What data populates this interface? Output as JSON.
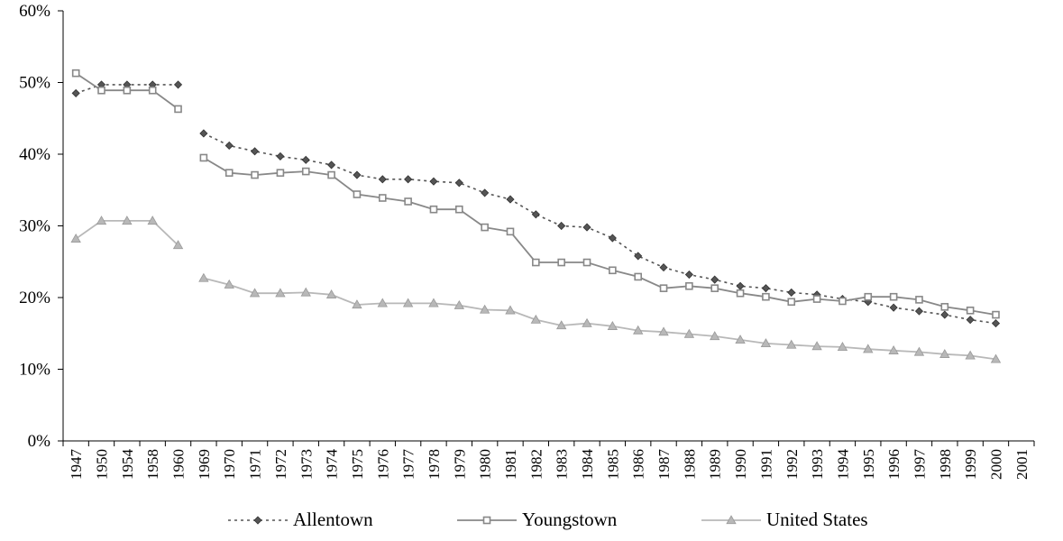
{
  "chart_data": {
    "type": "line",
    "x": [
      "1947",
      "1950",
      "1954",
      "1958",
      "1960",
      "1969",
      "1970",
      "1971",
      "1972",
      "1973",
      "1974",
      "1975",
      "1976",
      "1977",
      "1978",
      "1979",
      "1980",
      "1981",
      "1982",
      "1983",
      "1984",
      "1985",
      "1986",
      "1987",
      "1988",
      "1989",
      "1990",
      "1991",
      "1992",
      "1993",
      "1994",
      "1995",
      "1996",
      "1997",
      "1998",
      "1999",
      "2000",
      "2001"
    ],
    "series": [
      {
        "name": "Allentown",
        "color": "#555555",
        "marker": "diamond",
        "dash": "dotted",
        "values": [
          48.5,
          49.7,
          49.7,
          49.7,
          49.7,
          42.9,
          41.2,
          40.4,
          39.7,
          39.2,
          38.5,
          37.1,
          36.5,
          36.5,
          36.2,
          36.0,
          34.6,
          33.7,
          31.6,
          30.0,
          29.8,
          28.3,
          25.8,
          24.2,
          23.2,
          22.5,
          21.6,
          21.3,
          20.7,
          20.4,
          19.8,
          19.4,
          18.6,
          18.1,
          17.6,
          16.9,
          16.4,
          null
        ]
      },
      {
        "name": "Youngstown",
        "color": "#888888",
        "marker": "square",
        "dash": "solid",
        "values": [
          51.3,
          48.9,
          48.9,
          48.9,
          46.3,
          39.5,
          37.4,
          37.1,
          37.4,
          37.6,
          37.1,
          34.4,
          33.9,
          33.4,
          32.3,
          32.3,
          29.8,
          29.2,
          24.9,
          24.9,
          24.9,
          23.8,
          22.9,
          21.3,
          21.6,
          21.3,
          20.6,
          20.1,
          19.4,
          19.8,
          19.5,
          20.1,
          20.1,
          19.7,
          18.7,
          18.2,
          17.6,
          null
        ]
      },
      {
        "name": "United States",
        "color": "#b8b8b8",
        "marker": "triangle",
        "dash": "solid",
        "values": [
          28.2,
          30.7,
          30.7,
          30.7,
          27.3,
          22.7,
          21.8,
          20.6,
          20.6,
          20.7,
          20.4,
          19.0,
          19.2,
          19.2,
          19.2,
          18.9,
          18.3,
          18.2,
          16.9,
          16.1,
          16.4,
          16.0,
          15.4,
          15.2,
          14.9,
          14.6,
          14.1,
          13.6,
          13.4,
          13.2,
          13.1,
          12.8,
          12.6,
          12.4,
          12.1,
          11.9,
          11.4,
          null
        ]
      }
    ],
    "segments": [
      [
        0,
        4
      ],
      [
        5,
        36
      ]
    ],
    "ylim": [
      0,
      60
    ],
    "yticks": [
      0,
      10,
      20,
      30,
      40,
      50,
      60
    ],
    "ytick_labels": [
      "0%",
      "10%",
      "20%",
      "30%",
      "40%",
      "50%",
      "60%"
    ],
    "xlabel": "",
    "ylabel": "",
    "grid": false,
    "legend_position": "bottom"
  }
}
